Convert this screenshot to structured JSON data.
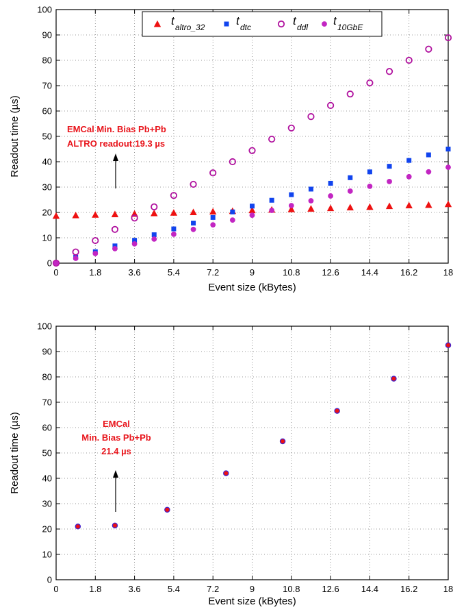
{
  "chart_data": [
    {
      "type": "scatter",
      "title": "",
      "xlabel": "Event size (kBytes)",
      "ylabel": "Readout time (µs)",
      "xlim": [
        0,
        18
      ],
      "ylim": [
        0,
        100
      ],
      "xticks": [
        "0",
        "1.8",
        "3.6",
        "5.4",
        "7.2",
        "9",
        "10.8",
        "12.6",
        "14.4",
        "16.2",
        "18"
      ],
      "yticks": [
        "0",
        "10",
        "20",
        "30",
        "40",
        "50",
        "60",
        "70",
        "80",
        "90",
        "100"
      ],
      "grid": true,
      "legend_position": "top-center",
      "annotation": [
        "EMCal Min. Bias Pb+Pb",
        "ALTRO readout:19.3 µs"
      ],
      "series": [
        {
          "name": "t_altro_32",
          "legend_main": "t",
          "legend_sub": "altro_32",
          "marker": "triangle",
          "color": "#ee1111",
          "x": [
            0,
            0.9,
            1.8,
            2.7,
            3.6,
            4.5,
            5.4,
            6.3,
            7.2,
            8.1,
            9.0,
            9.9,
            10.8,
            11.7,
            12.6,
            13.5,
            14.4,
            15.3,
            16.2,
            17.1,
            18.0
          ],
          "y": [
            18.7,
            18.9,
            19.1,
            19.3,
            19.5,
            19.7,
            19.9,
            20.1,
            20.4,
            20.6,
            20.9,
            21.1,
            21.3,
            21.5,
            21.7,
            22.0,
            22.2,
            22.5,
            22.8,
            23.0,
            23.3
          ]
        },
        {
          "name": "t_dtc",
          "legend_main": "t",
          "legend_sub": "dtc",
          "marker": "square",
          "color": "#1144ee",
          "x": [
            0,
            0.9,
            1.8,
            2.7,
            3.6,
            4.5,
            5.4,
            6.3,
            7.2,
            8.1,
            9.0,
            9.9,
            10.8,
            11.7,
            12.6,
            13.5,
            14.4,
            15.3,
            16.2,
            17.1,
            18.0
          ],
          "y": [
            0,
            2.3,
            4.5,
            6.8,
            9.0,
            11.2,
            13.5,
            15.8,
            18.0,
            20.2,
            22.5,
            24.8,
            27.0,
            29.2,
            31.5,
            33.7,
            36.0,
            38.2,
            40.5,
            42.7,
            45.0
          ]
        },
        {
          "name": "t_ddl",
          "legend_main": "t",
          "legend_sub": "ddl",
          "marker": "open-circle",
          "color": "#b0109e",
          "x": [
            0,
            0.9,
            1.8,
            2.7,
            3.6,
            4.5,
            5.4,
            6.3,
            7.2,
            8.1,
            9.0,
            9.9,
            10.8,
            11.7,
            12.6,
            13.5,
            14.4,
            15.3,
            16.2,
            17.1,
            18.0
          ],
          "y": [
            0,
            4.4,
            8.9,
            13.3,
            17.8,
            22.2,
            26.7,
            31.1,
            35.6,
            40.0,
            44.4,
            48.9,
            53.3,
            57.8,
            62.2,
            66.7,
            71.1,
            75.6,
            80.0,
            84.4,
            88.9
          ]
        },
        {
          "name": "t_10GbE",
          "legend_main": "t",
          "legend_sub": "10GbE",
          "marker": "filled-circle",
          "color": "#c226c2",
          "x": [
            0,
            0.9,
            1.8,
            2.7,
            3.6,
            4.5,
            5.4,
            6.3,
            7.2,
            8.1,
            9.0,
            9.9,
            10.8,
            11.7,
            12.6,
            13.5,
            14.4,
            15.3,
            16.2,
            17.1,
            18.0
          ],
          "y": [
            0,
            1.9,
            3.8,
            5.7,
            7.6,
            9.5,
            11.4,
            13.3,
            15.1,
            17.0,
            18.9,
            20.8,
            22.7,
            24.6,
            26.5,
            28.4,
            30.3,
            32.2,
            34.1,
            36.0,
            37.8
          ]
        }
      ]
    },
    {
      "type": "scatter",
      "title": "",
      "xlabel": "Event size (kBytes)",
      "ylabel": "Readout time (µs)",
      "xlim": [
        0,
        18
      ],
      "ylim": [
        0,
        100
      ],
      "xticks": [
        "0",
        "1.8",
        "3.6",
        "5.4",
        "7.2",
        "9",
        "10.8",
        "12.6",
        "14.4",
        "16.2",
        "18"
      ],
      "yticks": [
        "0",
        "10",
        "20",
        "30",
        "40",
        "50",
        "60",
        "70",
        "80",
        "90",
        "100"
      ],
      "grid": true,
      "annotation": [
        "EMCal",
        "Min. Bias Pb+Pb",
        "21.4 µs"
      ],
      "series": [
        {
          "marker": "filled-circle-outlined",
          "color": "#ee1111",
          "edge_color": "#4422cc",
          "x": [
            1.0,
            2.7,
            5.1,
            7.8,
            10.4,
            12.9,
            15.5,
            18.0
          ],
          "y": [
            21.0,
            21.4,
            27.6,
            42.0,
            54.6,
            66.6,
            79.3,
            92.5
          ]
        }
      ]
    }
  ]
}
